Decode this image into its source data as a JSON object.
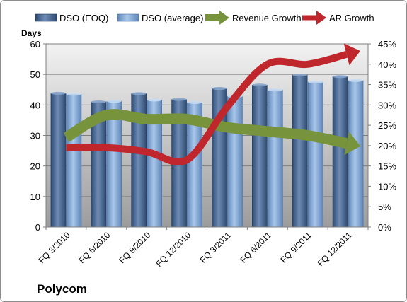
{
  "chart_data": {
    "type": "bar",
    "title": "Polycom",
    "categories": [
      "FQ 3/2010",
      "FQ 6/2010",
      "FQ 9/2010",
      "FQ 12/2010",
      "FQ 3/2011",
      "FQ 6/2011",
      "FQ 9/2011",
      "FQ 12/2011"
    ],
    "bar_series": [
      {
        "name": "DSO (EOQ)",
        "values": [
          43.8,
          41.0,
          43.7,
          41.8,
          45.4,
          46.5,
          49.8,
          49.3
        ],
        "color": "#4f6d96"
      },
      {
        "name": "DSO (average)",
        "values": [
          43.5,
          41.2,
          41.6,
          40.8,
          42.8,
          44.9,
          47.5,
          48.0
        ],
        "color": "#8db3e2"
      }
    ],
    "line_series": [
      {
        "name": "Revenue Growth",
        "values": [
          22,
          27.5,
          26.5,
          26.5,
          24.5,
          23.5,
          22.5,
          20.5
        ],
        "color": "#77933c"
      },
      {
        "name": "AR Growth",
        "values": [
          19.5,
          19.5,
          18.5,
          16.5,
          29.5,
          40,
          40,
          42.5
        ],
        "color": "#c0272d"
      }
    ],
    "ylabel": "Days",
    "ylim": [
      0,
      60
    ],
    "yticks": [
      "0",
      "10",
      "20",
      "30",
      "40",
      "50",
      "60"
    ],
    "y2lim": [
      0,
      45
    ],
    "y2ticks": [
      "0%",
      "5%",
      "10%",
      "15%",
      "20%",
      "25%",
      "30%",
      "35%",
      "40%",
      "45%"
    ],
    "legend_position": "top",
    "grid": true
  }
}
